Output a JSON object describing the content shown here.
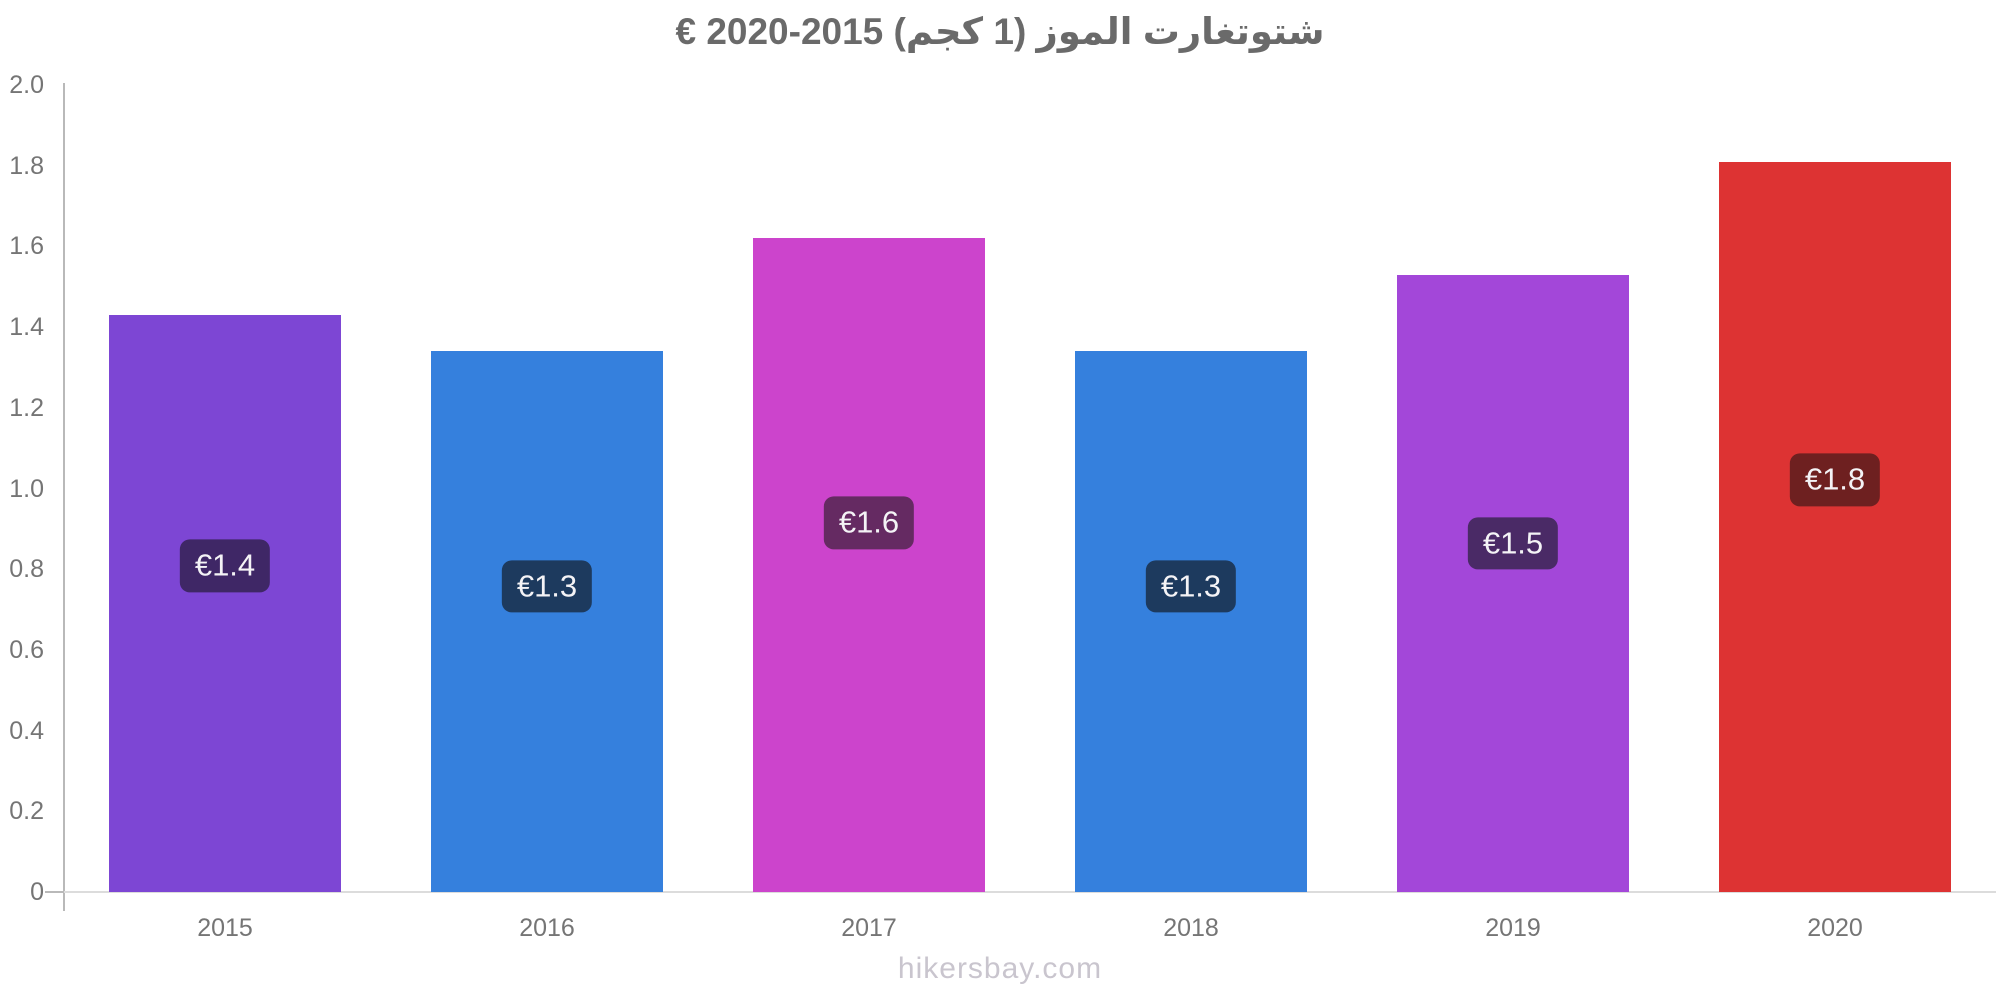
{
  "page": {
    "background": "#ffffff",
    "footer_text": "hikersbay.com"
  },
  "chart_data": {
    "type": "bar",
    "title": "شتوتغارت الموز (1 كجم) 2015-2020 €",
    "title_direction": "rtl",
    "currency": "€",
    "categories": [
      "2015",
      "2016",
      "2017",
      "2018",
      "2019",
      "2020"
    ],
    "values": [
      1.43,
      1.34,
      1.62,
      1.34,
      1.53,
      1.81
    ],
    "value_labels": [
      "€1.4",
      "€1.3",
      "€1.6",
      "€1.3",
      "€1.5",
      "€1.8"
    ],
    "bar_colors": [
      "#7d46d4",
      "#3580dd",
      "#cc44cc",
      "#3580dd",
      "#a347d9",
      "#dd3333"
    ],
    "value_label_bg_colors": [
      "#3f2766",
      "#1d3a5e",
      "#652a62",
      "#1d3a5e",
      "#4a2a66",
      "#6e2020"
    ],
    "ylim": [
      0,
      2.0
    ],
    "ytick_values": [
      2.0,
      1.8,
      1.6,
      1.4,
      1.2,
      1.0,
      0.8,
      0.6,
      0.4,
      0.2,
      0
    ],
    "ytick_labels": [
      "2.0",
      "1.8",
      "1.6",
      "1.4",
      "1.2",
      "1.0",
      "0.8",
      "0.6",
      "0.4",
      "0.2",
      "0"
    ],
    "xlabel": "",
    "ylabel": "",
    "grid": false,
    "legend": "none"
  },
  "colors": {
    "title_text": "#6a6a6a",
    "axis_label_text": "#757575",
    "axis_line": "#b9b9b9",
    "baseline": "#dcdcdc",
    "value_label_text": "#f4f3f6",
    "footer_text": "#c9c5ce"
  }
}
